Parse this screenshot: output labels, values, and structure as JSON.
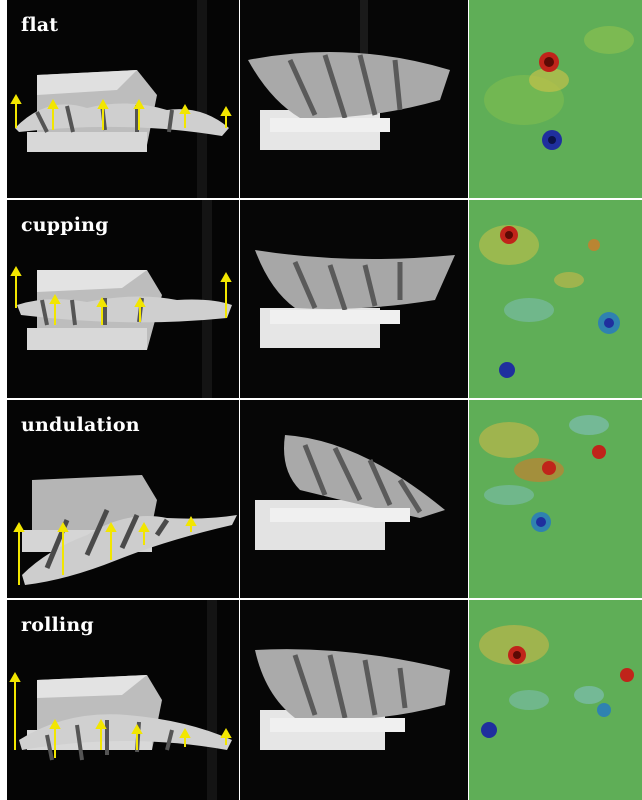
{
  "panels": [
    {
      "label": "flat"
    },
    {
      "label": "cupping"
    },
    {
      "label": "undulation"
    },
    {
      "label": "rolling"
    }
  ],
  "colors": {
    "arrow": "#f2e600",
    "background": "#000000",
    "vorticity_positive": "#c0241a",
    "vorticity_negative": "#1f2f9e",
    "field_base": "#5fae57"
  },
  "icons": [
    "yellow-arrow-icon"
  ]
}
